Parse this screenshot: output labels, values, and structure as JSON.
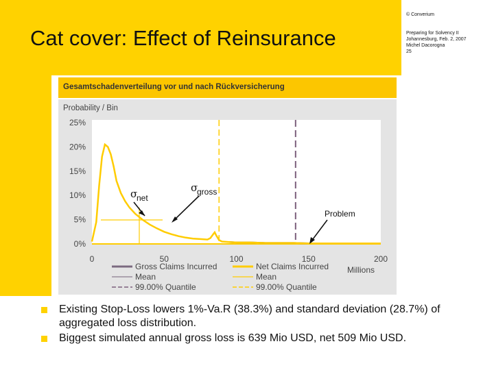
{
  "slide": {
    "title": "Cat cover: Effect of Reinsurance",
    "copyright": "© Converium",
    "meta": [
      "Preparing for Solvency II",
      "Johannesburg, Feb. 2, 2007",
      "Michel Dacorogna",
      "25"
    ]
  },
  "bullets": [
    "Existing Stop-Loss lowers 1%-Va.R (38.3%) and standard deviation (28.7%) of aggregated loss distribution.",
    "Biggest simulated annual gross loss is 639 Mio USD, net 509 Mio USD."
  ],
  "colors": {
    "brand_yellow": "#ffd200",
    "gross": "#7b6a80",
    "net": "#ffcc00",
    "quantile_gross": "#7b5e7b"
  },
  "chart_data": {
    "type": "line",
    "title": "Gesamtschadenverteilung vor und nach Rückversicherung",
    "ylabel": "Probability / Bin",
    "xlabel": "Millions",
    "xlim": [
      0,
      200
    ],
    "ylim": [
      0,
      0.25
    ],
    "xticks": [
      0,
      50,
      100,
      150,
      200
    ],
    "xtick_labels": [
      "0",
      "50",
      "100",
      "150",
      "200"
    ],
    "yticks": [
      0,
      0.05,
      0.1,
      0.15,
      0.2,
      0.25
    ],
    "ytick_labels": [
      "0%",
      "5%",
      "10%",
      "15%",
      "20%",
      "25%"
    ],
    "grid": false,
    "legend_position": "bottom",
    "series": [
      {
        "name": "Gross Claims Incurred",
        "color": "#7b6a80",
        "x": [
          95,
          100,
          110,
          120,
          130,
          140,
          150,
          160,
          170,
          180,
          190,
          200
        ],
        "y": [
          0.004,
          0.003,
          0.003,
          0.002,
          0.002,
          0.002,
          0.001,
          0.001,
          0.001,
          0.001,
          0.001,
          0.001
        ]
      },
      {
        "name": "Net Claims Incurred",
        "color": "#ffcc00",
        "x": [
          0,
          3,
          5,
          7,
          9,
          11,
          13,
          15,
          17,
          20,
          23,
          26,
          30,
          35,
          40,
          45,
          50,
          55,
          60,
          65,
          70,
          75,
          80,
          82,
          84,
          85,
          86,
          88,
          90,
          95,
          100,
          110,
          120,
          130,
          140,
          150,
          160,
          170,
          180,
          190,
          200
        ],
        "y": [
          0.005,
          0.045,
          0.12,
          0.18,
          0.205,
          0.2,
          0.185,
          0.16,
          0.13,
          0.105,
          0.088,
          0.075,
          0.062,
          0.05,
          0.04,
          0.032,
          0.025,
          0.02,
          0.016,
          0.013,
          0.011,
          0.01,
          0.009,
          0.012,
          0.02,
          0.024,
          0.018,
          0.008,
          0.005,
          0.004,
          0.003,
          0.003,
          0.002,
          0.002,
          0.002,
          0.001,
          0.001,
          0.001,
          0.001,
          0.001,
          0.001
        ]
      }
    ],
    "reference_lines": [
      {
        "name": "Mean",
        "series": "Gross Claims Incurred",
        "style": "solid",
        "color": "#8a7a8e"
      },
      {
        "name": "99.00% Quantile",
        "series": "Gross Claims Incurred",
        "style": "dashed",
        "color": "#7b5e7b",
        "x": 141
      },
      {
        "name": "Mean",
        "series": "Net Claims Incurred",
        "style": "solid",
        "color": "#ffcc00"
      },
      {
        "name": "99.00% Quantile",
        "series": "Net Claims Incurred",
        "style": "dashed",
        "color": "#ffcc00",
        "x": 88
      }
    ],
    "legend": [
      {
        "label": "Gross Claims Incurred",
        "style": "thick",
        "color": "#7b6a80"
      },
      {
        "label": "Net Claims Incurred",
        "style": "thick",
        "color": "#ffcc00"
      },
      {
        "label": "Mean",
        "style": "thin",
        "color": "#8a7a8e"
      },
      {
        "label": "Mean",
        "style": "thin",
        "color": "#ffcc00"
      },
      {
        "label": "99.00% Quantile",
        "style": "dashed",
        "color": "#7b5e7b"
      },
      {
        "label": "99.00% Quantile",
        "style": "dashed",
        "color": "#ffcc00"
      }
    ],
    "annotations": [
      {
        "symbol": "σ",
        "subscript": "net"
      },
      {
        "symbol": "σ",
        "subscript": "gross"
      },
      {
        "text": "Problem"
      }
    ]
  }
}
